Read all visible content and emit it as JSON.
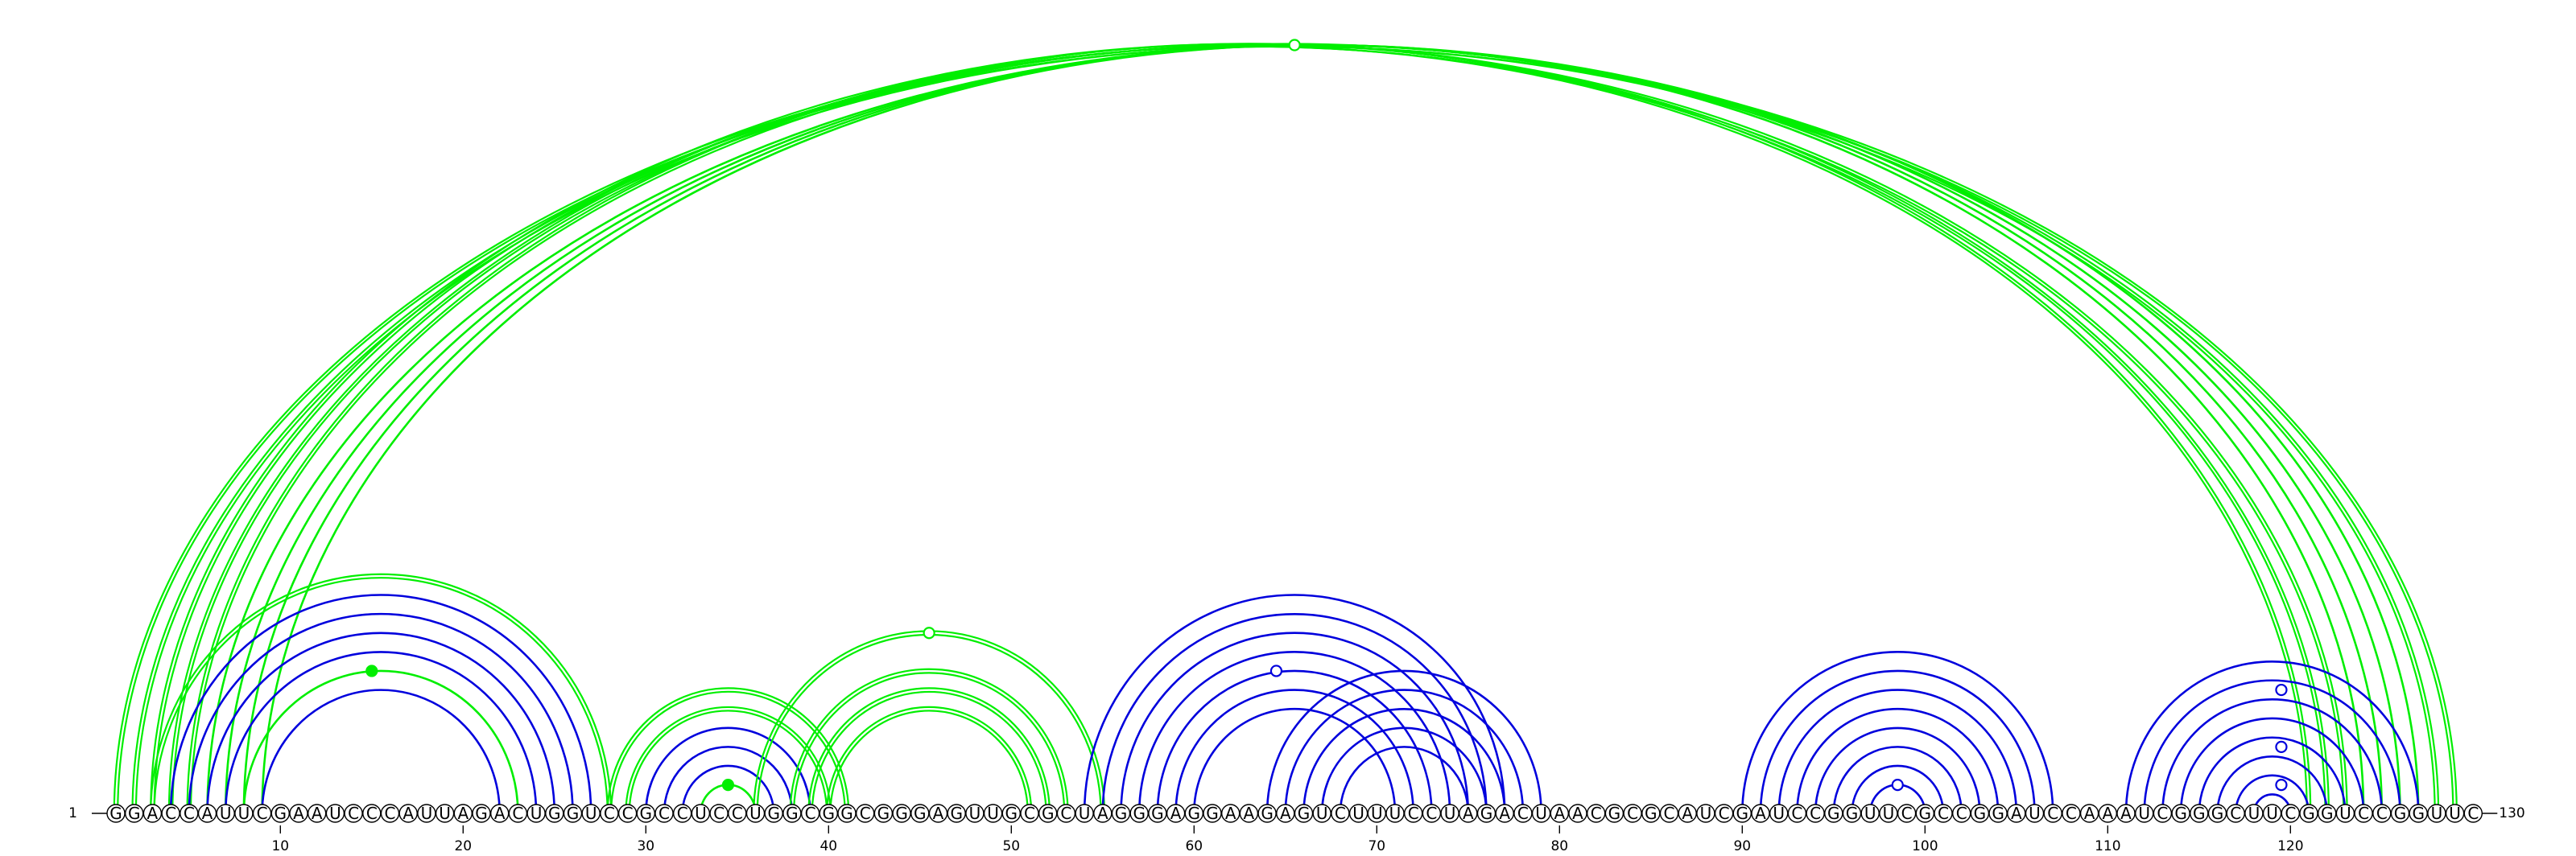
{
  "sequence": "GGACCAUUCGAAUCCCAUUAGACUGGUCCGCCUCCUGGCGGCGGGAGUUGCGCUAGGGAGGAAGAGUCUUUCCUAGACUAACGCGCAUCGAUCCGGUUCGCCGGAUCCAAAUCGGGCUUCGGUCCGGUUC",
  "start_label": "1",
  "end_label": "130",
  "ticks": [
    10,
    20,
    30,
    40,
    50,
    60,
    70,
    80,
    90,
    100,
    110,
    120
  ],
  "colors": {
    "green": "#00ee00",
    "blue": "#0000dd",
    "backbone": "#000000"
  },
  "arc_groups": [
    {
      "name": "long-range",
      "color": "#00ee00",
      "double": true,
      "pairs": [
        [
          1,
          129
        ],
        [
          2,
          128
        ],
        [
          3,
          123
        ],
        [
          4,
          122
        ],
        [
          5,
          121
        ]
      ]
    },
    {
      "name": "long-range-single",
      "color": "#00ee00",
      "double": false,
      "pairs": [
        [
          6,
          127
        ],
        [
          7,
          126
        ],
        [
          8,
          125
        ],
        [
          9,
          124
        ]
      ]
    },
    {
      "name": "helix-a-outer",
      "color": "#00ee00",
      "double": true,
      "pairs": [
        [
          3,
          28
        ]
      ]
    },
    {
      "name": "helix-a",
      "color": "#0000dd",
      "double": false,
      "pairs": [
        [
          4,
          27
        ],
        [
          5,
          26
        ],
        [
          6,
          25
        ],
        [
          7,
          24
        ],
        [
          9,
          22
        ]
      ]
    },
    {
      "name": "helix-a-inner",
      "color": "#00ee00",
      "double": false,
      "pairs": [
        [
          8,
          23
        ]
      ]
    },
    {
      "name": "helix-b-outer",
      "color": "#00ee00",
      "double": true,
      "pairs": [
        [
          28,
          41
        ],
        [
          29,
          40
        ]
      ]
    },
    {
      "name": "helix-b",
      "color": "#0000dd",
      "double": false,
      "pairs": [
        [
          30,
          39
        ],
        [
          31,
          38
        ],
        [
          32,
          37
        ]
      ]
    },
    {
      "name": "helix-b-inner",
      "color": "#00ee00",
      "double": false,
      "pairs": [
        [
          33,
          36
        ]
      ]
    },
    {
      "name": "helix-c",
      "color": "#00ee00",
      "double": true,
      "pairs": [
        [
          38,
          53
        ],
        [
          39,
          52
        ],
        [
          40,
          51
        ],
        [
          36,
          55
        ]
      ]
    },
    {
      "name": "helix-d",
      "color": "#0000dd",
      "double": false,
      "pairs": [
        [
          54,
          77
        ],
        [
          55,
          76
        ],
        [
          56,
          75
        ],
        [
          57,
          74
        ],
        [
          58,
          73
        ],
        [
          59,
          72
        ],
        [
          60,
          71
        ]
      ]
    },
    {
      "name": "helix-e",
      "color": "#0000dd",
      "double": false,
      "pairs": [
        [
          64,
          79
        ],
        [
          65,
          78
        ],
        [
          66,
          77
        ],
        [
          67,
          76
        ],
        [
          68,
          75
        ]
      ]
    },
    {
      "name": "helix-f",
      "color": "#0000dd",
      "double": false,
      "pairs": [
        [
          90,
          107
        ],
        [
          91,
          106
        ],
        [
          92,
          105
        ],
        [
          93,
          104
        ],
        [
          94,
          103
        ],
        [
          95,
          102
        ],
        [
          96,
          101
        ],
        [
          97,
          100
        ]
      ]
    },
    {
      "name": "helix-g",
      "color": "#0000dd",
      "double": false,
      "pairs": [
        [
          111,
          127
        ],
        [
          112,
          126
        ],
        [
          113,
          125
        ],
        [
          114,
          124
        ],
        [
          115,
          123
        ],
        [
          116,
          122
        ],
        [
          117,
          121
        ],
        [
          118,
          120
        ]
      ]
    }
  ],
  "markers": [
    {
      "x": 15,
      "color": "#00ee00",
      "filled": true,
      "y_arc": [
        8,
        23
      ]
    },
    {
      "x": 34.5,
      "color": "#00ee00",
      "filled": true,
      "y_arc": [
        33,
        36
      ]
    },
    {
      "x": 45.5,
      "color": "#00ee00",
      "filled": false,
      "y_arc": [
        36,
        55
      ]
    },
    {
      "x": 64.5,
      "color": "#0000dd",
      "filled": false,
      "y_arc": [
        57,
        72
      ]
    },
    {
      "x": 65.5,
      "color": "#00ee00",
      "filled": false,
      "y_arc": [
        1,
        130
      ]
    },
    {
      "x": 98.5,
      "color": "#0000dd",
      "filled": false,
      "y_arc": [
        97,
        100
      ]
    },
    {
      "x": 119.5,
      "color": "#0000dd",
      "filled": false,
      "y_arc": [
        113,
        126
      ]
    },
    {
      "x": 119.5,
      "color": "#0000dd",
      "filled": false,
      "y_arc": [
        116,
        123
      ]
    },
    {
      "x": 119.5,
      "color": "#0000dd",
      "filled": false,
      "y_arc": [
        118,
        121
      ]
    }
  ]
}
